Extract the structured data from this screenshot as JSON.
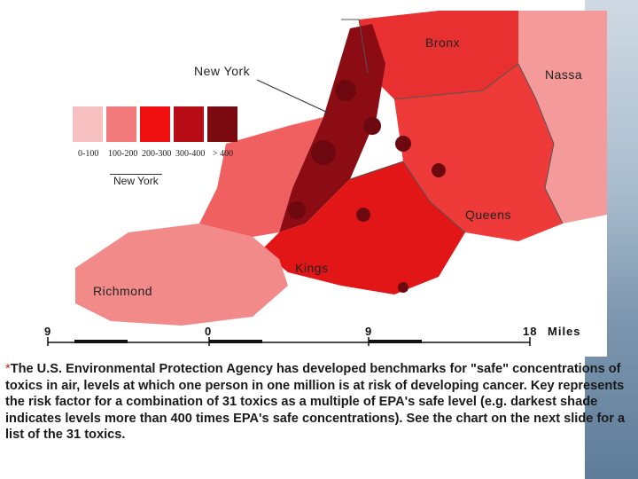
{
  "map": {
    "labels": {
      "bronx": "Bronx",
      "new_york": "New York",
      "nassau": "Nassa",
      "queens": "Queens",
      "kings": "Kings",
      "richmond": "Richmond"
    },
    "legend": {
      "title": "New York",
      "classes": [
        {
          "label": "0-100",
          "color": "#f7c0c0"
        },
        {
          "label": "100-200",
          "color": "#f27a7a"
        },
        {
          "label": "200-300",
          "color": "#f01010"
        },
        {
          "label": "300-400",
          "color": "#b80c16"
        },
        {
          "label": "> 400",
          "color": "#7a0a10"
        }
      ]
    },
    "scale": {
      "ticks": [
        "9",
        "0",
        "9",
        "18"
      ],
      "unit": "Miles"
    },
    "colors": {
      "low": "#f5a0a0",
      "medium": "#f04040",
      "high": "#e01010",
      "very_high": "#8a0a14",
      "border": "#555555"
    }
  },
  "caption": {
    "marker": "*",
    "text": "The U.S. Environmental Protection Agency has developed benchmarks for \"safe\" concentrations of toxics in air, levels at which one person in one million is at risk of developing cancer. Key represents the risk factor for a combination of 31 toxics as a multiple of EPA's safe level (e.g. darkest shade indicates levels more than 400 times EPA's safe concentrations). See the chart on the next slide for a list of the 31 toxics."
  }
}
